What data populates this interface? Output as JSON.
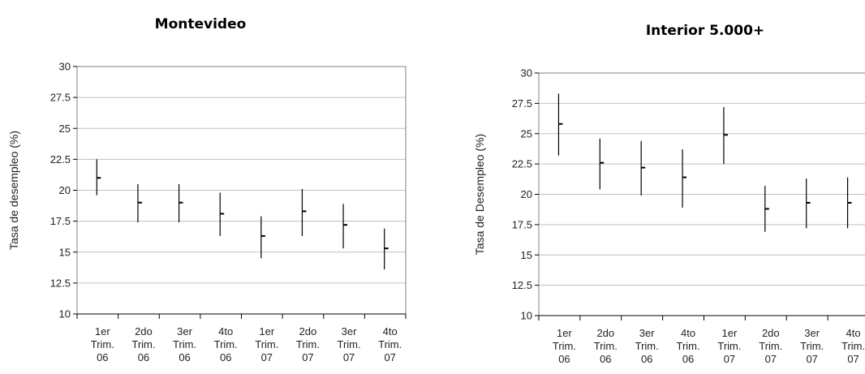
{
  "chart_data": [
    {
      "type": "range",
      "title": "Montevideo",
      "xlabel": "",
      "ylabel": "Tasa de desempleo (%)",
      "ylim": [
        10,
        30
      ],
      "yticks": [
        "10",
        "12.5",
        "15",
        "17.5",
        "20",
        "22.5",
        "25",
        "27.5",
        "30"
      ],
      "ytick_values": [
        10,
        12.5,
        15,
        17.5,
        20,
        22.5,
        25,
        27.5,
        30
      ],
      "grid": true,
      "categories": [
        [
          "1er",
          "Trim.",
          "06"
        ],
        [
          "2do",
          "Trim.",
          "06"
        ],
        [
          "3er",
          "Trim.",
          "06"
        ],
        [
          "4to",
          "Trim.",
          "06"
        ],
        [
          "1er",
          "Trim.",
          "07"
        ],
        [
          "2do",
          "Trim.",
          "07"
        ],
        [
          "3er",
          "Trim.",
          "07"
        ],
        [
          "4to",
          "Trim.",
          "07"
        ]
      ],
      "low": [
        19.6,
        17.4,
        17.4,
        16.3,
        14.5,
        16.3,
        15.3,
        13.6
      ],
      "high": [
        22.5,
        20.5,
        20.5,
        19.8,
        17.9,
        20.1,
        18.9,
        16.9
      ],
      "value": [
        21.0,
        19.0,
        19.0,
        18.1,
        16.3,
        18.3,
        17.2,
        15.3
      ],
      "colors": {
        "line": "#000000",
        "grid": "#c0c0c0",
        "frame": "#808080"
      }
    },
    {
      "type": "range",
      "title": "Interior 5.000+",
      "xlabel": "",
      "ylabel": "Tasa de Desempleo (%)",
      "ylim": [
        10,
        30
      ],
      "yticks": [
        "10",
        "12.5",
        "15",
        "17.5",
        "20",
        "22.5",
        "25",
        "27.5",
        "30"
      ],
      "ytick_values": [
        10,
        12.5,
        15,
        17.5,
        20,
        22.5,
        25,
        27.5,
        30
      ],
      "grid": true,
      "categories": [
        [
          "1er",
          "Trim.",
          "06"
        ],
        [
          "2do",
          "Trim.",
          "06"
        ],
        [
          "3er",
          "Trim.",
          "06"
        ],
        [
          "4to",
          "Trim.",
          "06"
        ],
        [
          "1er",
          "Trim.",
          "07"
        ],
        [
          "2do",
          "Trim.",
          "07"
        ],
        [
          "3er",
          "Trim.",
          "07"
        ],
        [
          "4to",
          "Trim.",
          "07"
        ]
      ],
      "low": [
        23.2,
        20.4,
        19.9,
        18.9,
        22.5,
        16.9,
        17.2,
        17.2
      ],
      "high": [
        28.3,
        24.6,
        24.4,
        23.7,
        27.2,
        20.7,
        21.3,
        21.4
      ],
      "value": [
        25.8,
        22.6,
        22.2,
        21.4,
        24.9,
        18.8,
        19.3,
        19.3
      ],
      "colors": {
        "line": "#000000",
        "grid": "#c0c0c0",
        "frame": "#808080"
      }
    }
  ]
}
